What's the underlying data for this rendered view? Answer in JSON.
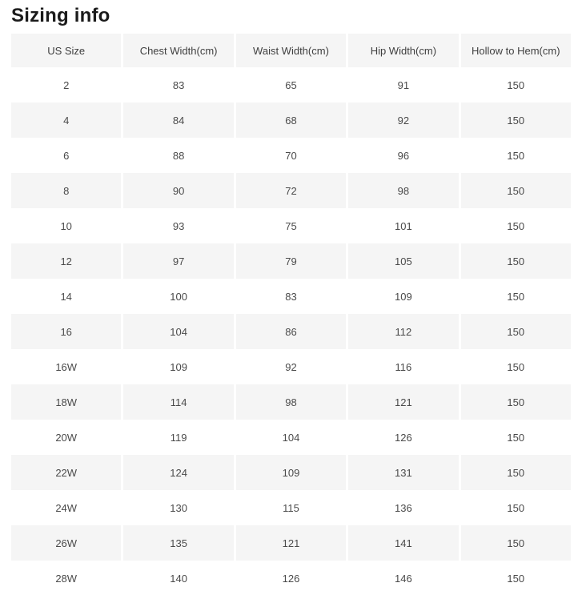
{
  "page": {
    "title": "Sizing info"
  },
  "colors": {
    "row_alt_bg": "#f5f5f5",
    "header_bg": "#f5f5f5",
    "cell_text": "#4a4a4a",
    "title_text": "#1b1b1b",
    "page_bg": "#ffffff"
  },
  "table": {
    "columns": [
      "US Size",
      "Chest Width(cm)",
      "Waist Width(cm)",
      "Hip Width(cm)",
      "Hollow to Hem(cm)"
    ],
    "rows": [
      [
        "2",
        "83",
        "65",
        "91",
        "150"
      ],
      [
        "4",
        "84",
        "68",
        "92",
        "150"
      ],
      [
        "6",
        "88",
        "70",
        "96",
        "150"
      ],
      [
        "8",
        "90",
        "72",
        "98",
        "150"
      ],
      [
        "10",
        "93",
        "75",
        "101",
        "150"
      ],
      [
        "12",
        "97",
        "79",
        "105",
        "150"
      ],
      [
        "14",
        "100",
        "83",
        "109",
        "150"
      ],
      [
        "16",
        "104",
        "86",
        "112",
        "150"
      ],
      [
        "16W",
        "109",
        "92",
        "116",
        "150"
      ],
      [
        "18W",
        "114",
        "98",
        "121",
        "150"
      ],
      [
        "20W",
        "119",
        "104",
        "126",
        "150"
      ],
      [
        "22W",
        "124",
        "109",
        "131",
        "150"
      ],
      [
        "24W",
        "130",
        "115",
        "136",
        "150"
      ],
      [
        "26W",
        "135",
        "121",
        "141",
        "150"
      ],
      [
        "28W",
        "140",
        "126",
        "146",
        "150"
      ]
    ]
  }
}
